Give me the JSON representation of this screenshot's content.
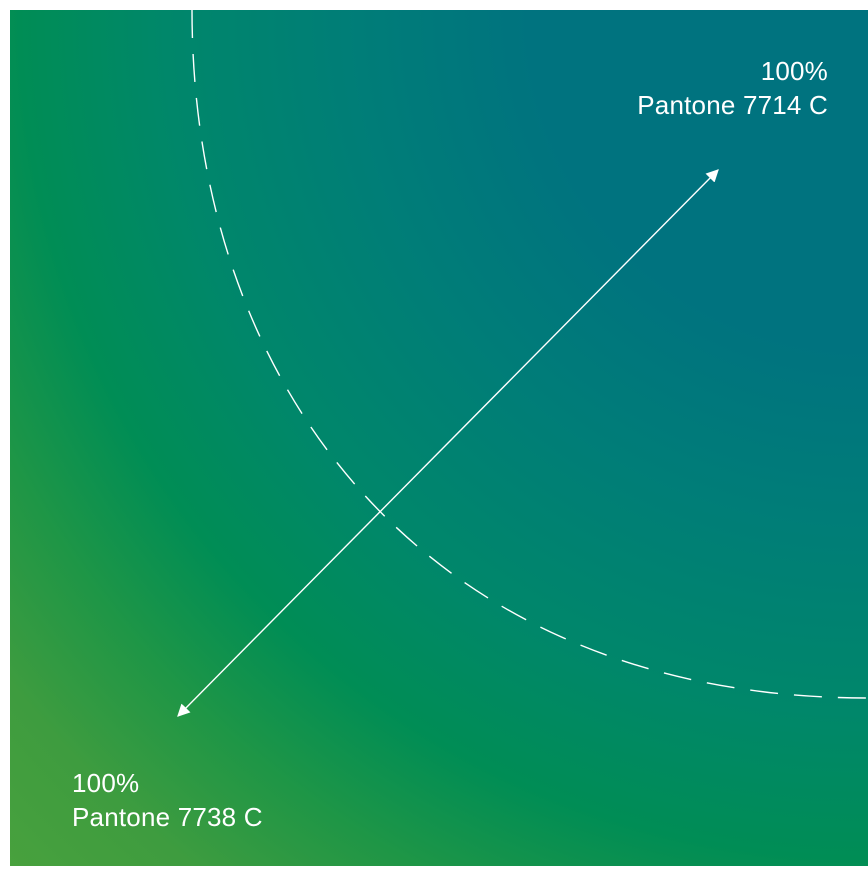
{
  "colors": {
    "top_right": "#00737f",
    "bottom_left": "#48a13d",
    "mid": "#008d55",
    "lines": "#ffffff"
  },
  "top_label": {
    "percent": "100%",
    "color_name": "Pantone 7714 C"
  },
  "bottom_label": {
    "percent": "100%",
    "color_name": "Pantone 7738 C"
  }
}
